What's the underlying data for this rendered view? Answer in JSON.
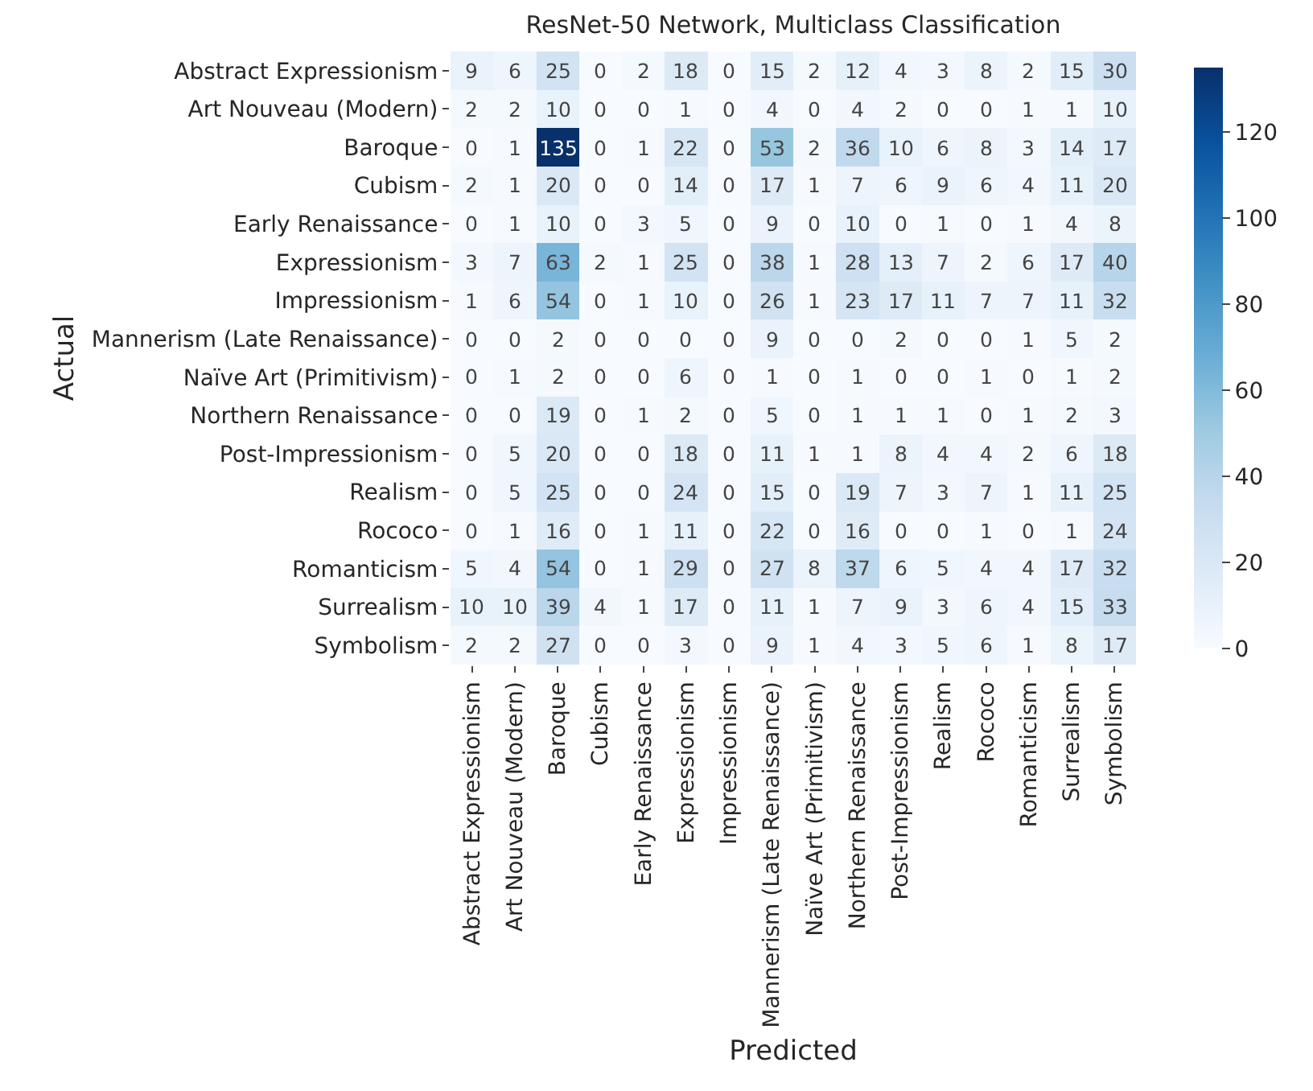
{
  "chart_data": {
    "type": "heatmap",
    "title": "ResNet-50 Network, Multiclass Classification",
    "xlabel": "Predicted",
    "ylabel": "Actual",
    "categories": [
      "Abstract Expressionism",
      "Art Nouveau (Modern)",
      "Baroque",
      "Cubism",
      "Early Renaissance",
      "Expressionism",
      "Impressionism",
      "Mannerism (Late Renaissance)",
      "Naïve Art (Primitivism)",
      "Northern Renaissance",
      "Post-Impressionism",
      "Realism",
      "Rococo",
      "Romanticism",
      "Surrealism",
      "Symbolism"
    ],
    "y_categories": [
      "Abstract Expressionism",
      "Art Nouveau (Modern)",
      "Baroque",
      "Cubism",
      "Early Renaissance",
      "Expressionism",
      "Impressionism",
      "Mannerism (Late Renaissance)",
      "Naïve Art (Primitivism)",
      "Northern Renaissance",
      "Post-Impressionism",
      "Realism",
      "Rococo",
      "Romanticism",
      "Surrealism",
      "Symbolism"
    ],
    "cells": [
      [
        9,
        6,
        25,
        0,
        2,
        18,
        0,
        15,
        2,
        12,
        4,
        3,
        8,
        2,
        15,
        30
      ],
      [
        2,
        2,
        10,
        0,
        0,
        1,
        0,
        4,
        0,
        4,
        2,
        0,
        0,
        1,
        1,
        10
      ],
      [
        0,
        1,
        135,
        0,
        1,
        22,
        0,
        53,
        2,
        36,
        10,
        6,
        8,
        3,
        14,
        17
      ],
      [
        2,
        1,
        20,
        0,
        0,
        14,
        0,
        17,
        1,
        7,
        6,
        9,
        6,
        4,
        11,
        20
      ],
      [
        0,
        1,
        10,
        0,
        3,
        5,
        0,
        9,
        0,
        10,
        0,
        1,
        0,
        1,
        4,
        8
      ],
      [
        3,
        7,
        63,
        2,
        1,
        25,
        0,
        38,
        1,
        28,
        13,
        7,
        2,
        6,
        17,
        40
      ],
      [
        1,
        6,
        54,
        0,
        1,
        10,
        0,
        26,
        1,
        23,
        17,
        11,
        7,
        7,
        11,
        32
      ],
      [
        0,
        0,
        2,
        0,
        0,
        0,
        0,
        9,
        0,
        0,
        2,
        0,
        0,
        1,
        5,
        2
      ],
      [
        0,
        1,
        2,
        0,
        0,
        6,
        0,
        1,
        0,
        1,
        0,
        0,
        1,
        0,
        1,
        2
      ],
      [
        0,
        0,
        19,
        0,
        1,
        2,
        0,
        5,
        0,
        1,
        1,
        1,
        0,
        1,
        2,
        3
      ],
      [
        0,
        5,
        20,
        0,
        0,
        18,
        0,
        11,
        1,
        1,
        8,
        4,
        4,
        2,
        6,
        18
      ],
      [
        0,
        5,
        25,
        0,
        0,
        24,
        0,
        15,
        0,
        19,
        7,
        3,
        7,
        1,
        11,
        25
      ],
      [
        0,
        1,
        16,
        0,
        1,
        11,
        0,
        22,
        0,
        16,
        0,
        0,
        1,
        0,
        1,
        24
      ],
      [
        5,
        4,
        54,
        0,
        1,
        29,
        0,
        27,
        8,
        37,
        6,
        5,
        4,
        4,
        17,
        32
      ],
      [
        10,
        10,
        39,
        4,
        1,
        17,
        0,
        11,
        1,
        7,
        9,
        3,
        6,
        4,
        15,
        33
      ],
      [
        2,
        2,
        27,
        0,
        0,
        3,
        0,
        9,
        1,
        4,
        3,
        5,
        6,
        1,
        8,
        17
      ]
    ],
    "clim": [
      0,
      135
    ],
    "cticks": [
      0,
      20,
      40,
      60,
      80,
      100,
      120
    ],
    "data_labels": true
  }
}
